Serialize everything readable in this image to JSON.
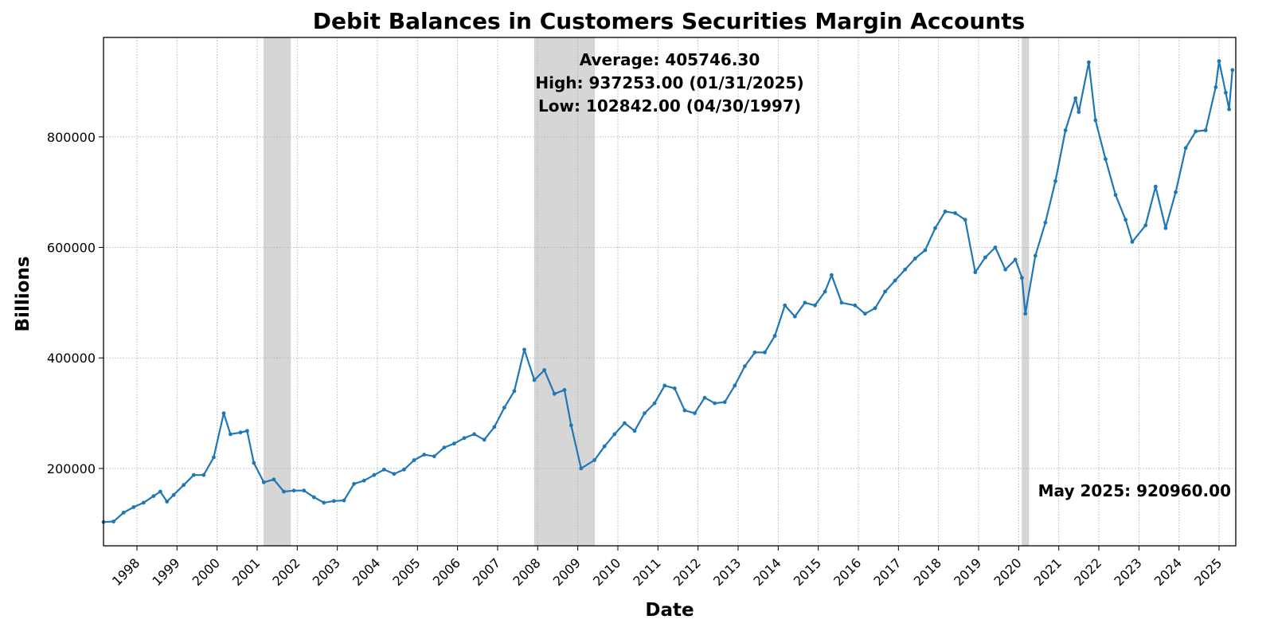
{
  "chart_data": {
    "type": "line",
    "title": "Debit Balances in Customers Securities Margin Accounts",
    "xlabel": "Date",
    "ylabel": "Billions",
    "xlim": [
      "1997-03",
      "2025-06"
    ],
    "ylim": [
      60000,
      980000
    ],
    "x_ticks": [
      "1998",
      "1999",
      "2000",
      "2001",
      "2002",
      "2003",
      "2004",
      "2005",
      "2006",
      "2007",
      "2008",
      "2009",
      "2010",
      "2011",
      "2012",
      "2013",
      "2014",
      "2015",
      "2016",
      "2017",
      "2018",
      "2019",
      "2020",
      "2021",
      "2022",
      "2023",
      "2024",
      "2025"
    ],
    "y_ticks": [
      200000,
      400000,
      600000,
      800000
    ],
    "y_tick_labels": [
      "200000",
      "400000",
      "600000",
      "800000"
    ],
    "grid": true,
    "line_color": "#1f77b4",
    "recession_color": "#d6d6d6",
    "recessions": [
      {
        "start": "2001-03",
        "end": "2001-11"
      },
      {
        "start": "2007-12",
        "end": "2009-06"
      },
      {
        "start": "2020-02",
        "end": "2020-04"
      }
    ],
    "stats": {
      "average": "Average: 405746.30",
      "high": "High: 937253.00 (01/31/2025)",
      "low": "Low: 102842.00 (04/30/1997)"
    },
    "latest_label": "May 2025: 920960.00",
    "series": [
      {
        "points": [
          [
            "1997-03",
            103000
          ],
          [
            "1997-06",
            104000
          ],
          [
            "1997-09",
            120000
          ],
          [
            "1997-12",
            130000
          ],
          [
            "1998-03",
            138000
          ],
          [
            "1998-06",
            150000
          ],
          [
            "1998-08",
            158000
          ],
          [
            "1998-10",
            140000
          ],
          [
            "1998-12",
            152000
          ],
          [
            "1999-03",
            170000
          ],
          [
            "1999-06",
            188000
          ],
          [
            "1999-09",
            188000
          ],
          [
            "1999-12",
            220000
          ],
          [
            "2000-03",
            300000
          ],
          [
            "2000-05",
            262000
          ],
          [
            "2000-08",
            265000
          ],
          [
            "2000-10",
            268000
          ],
          [
            "2000-12",
            210000
          ],
          [
            "2001-03",
            175000
          ],
          [
            "2001-06",
            180000
          ],
          [
            "2001-09",
            158000
          ],
          [
            "2001-12",
            160000
          ],
          [
            "2002-03",
            160000
          ],
          [
            "2002-06",
            148000
          ],
          [
            "2002-09",
            138000
          ],
          [
            "2002-12",
            141000
          ],
          [
            "2003-03",
            142000
          ],
          [
            "2003-06",
            172000
          ],
          [
            "2003-09",
            178000
          ],
          [
            "2003-12",
            188000
          ],
          [
            "2004-03",
            198000
          ],
          [
            "2004-06",
            190000
          ],
          [
            "2004-09",
            198000
          ],
          [
            "2004-12",
            215000
          ],
          [
            "2005-03",
            225000
          ],
          [
            "2005-06",
            222000
          ],
          [
            "2005-09",
            238000
          ],
          [
            "2005-12",
            245000
          ],
          [
            "2006-03",
            255000
          ],
          [
            "2006-06",
            262000
          ],
          [
            "2006-09",
            252000
          ],
          [
            "2006-12",
            275000
          ],
          [
            "2007-03",
            310000
          ],
          [
            "2007-06",
            340000
          ],
          [
            "2007-09",
            415000
          ],
          [
            "2007-12",
            360000
          ],
          [
            "2008-03",
            378000
          ],
          [
            "2008-06",
            335000
          ],
          [
            "2008-09",
            342000
          ],
          [
            "2008-11",
            278000
          ],
          [
            "2009-02",
            200000
          ],
          [
            "2009-06",
            215000
          ],
          [
            "2009-09",
            240000
          ],
          [
            "2009-12",
            262000
          ],
          [
            "2010-03",
            282000
          ],
          [
            "2010-06",
            268000
          ],
          [
            "2010-09",
            300000
          ],
          [
            "2010-12",
            318000
          ],
          [
            "2011-03",
            350000
          ],
          [
            "2011-06",
            345000
          ],
          [
            "2011-09",
            305000
          ],
          [
            "2011-12",
            300000
          ],
          [
            "2012-03",
            328000
          ],
          [
            "2012-06",
            318000
          ],
          [
            "2012-09",
            320000
          ],
          [
            "2012-12",
            350000
          ],
          [
            "2013-03",
            385000
          ],
          [
            "2013-06",
            410000
          ],
          [
            "2013-09",
            410000
          ],
          [
            "2013-12",
            440000
          ],
          [
            "2014-03",
            495000
          ],
          [
            "2014-06",
            475000
          ],
          [
            "2014-09",
            500000
          ],
          [
            "2014-12",
            495000
          ],
          [
            "2015-03",
            520000
          ],
          [
            "2015-05",
            550000
          ],
          [
            "2015-08",
            500000
          ],
          [
            "2015-12",
            495000
          ],
          [
            "2016-03",
            480000
          ],
          [
            "2016-06",
            490000
          ],
          [
            "2016-09",
            520000
          ],
          [
            "2016-12",
            540000
          ],
          [
            "2017-03",
            560000
          ],
          [
            "2017-06",
            580000
          ],
          [
            "2017-09",
            595000
          ],
          [
            "2017-12",
            635000
          ],
          [
            "2018-03",
            665000
          ],
          [
            "2018-06",
            662000
          ],
          [
            "2018-09",
            650000
          ],
          [
            "2018-12",
            555000
          ],
          [
            "2019-03",
            582000
          ],
          [
            "2019-06",
            600000
          ],
          [
            "2019-09",
            560000
          ],
          [
            "2019-12",
            578000
          ],
          [
            "2020-02",
            545000
          ],
          [
            "2020-03",
            480000
          ],
          [
            "2020-06",
            585000
          ],
          [
            "2020-09",
            645000
          ],
          [
            "2020-12",
            720000
          ],
          [
            "2021-03",
            812000
          ],
          [
            "2021-06",
            870000
          ],
          [
            "2021-07",
            845000
          ],
          [
            "2021-10",
            935000
          ],
          [
            "2021-12",
            830000
          ],
          [
            "2022-03",
            760000
          ],
          [
            "2022-06",
            695000
          ],
          [
            "2022-09",
            650000
          ],
          [
            "2022-11",
            610000
          ],
          [
            "2023-03",
            640000
          ],
          [
            "2023-06",
            710000
          ],
          [
            "2023-09",
            635000
          ],
          [
            "2023-12",
            700000
          ],
          [
            "2024-03",
            780000
          ],
          [
            "2024-06",
            810000
          ],
          [
            "2024-09",
            812000
          ],
          [
            "2024-12",
            890000
          ],
          [
            "2025-01",
            937253
          ],
          [
            "2025-03",
            880000
          ],
          [
            "2025-04",
            850000
          ],
          [
            "2025-05",
            920960
          ]
        ]
      }
    ]
  }
}
